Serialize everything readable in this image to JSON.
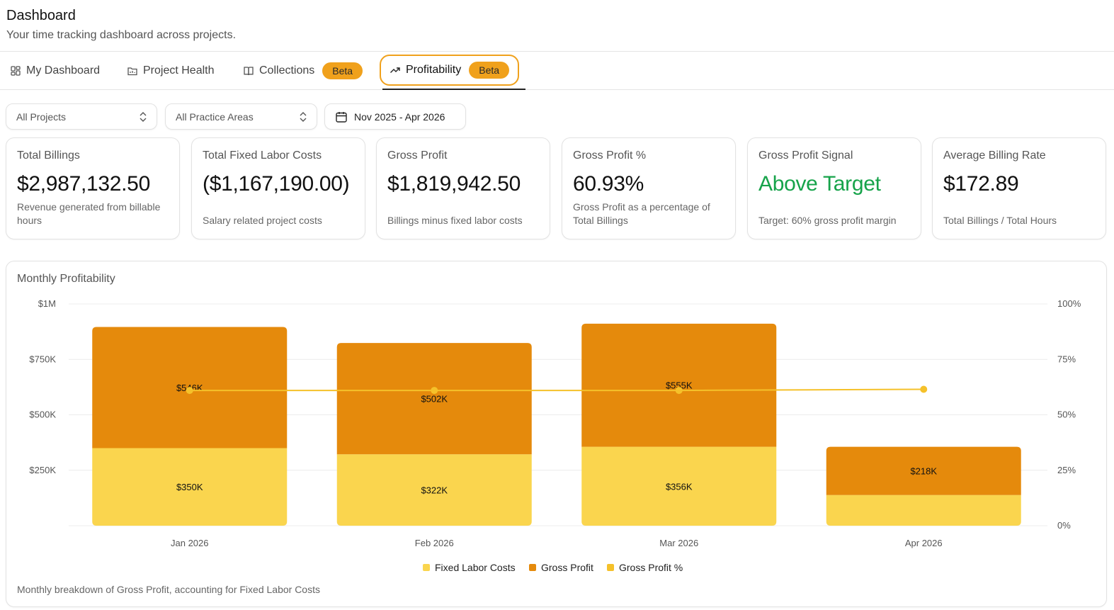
{
  "header": {
    "title": "Dashboard",
    "subtitle": "Your time tracking dashboard across projects."
  },
  "tabs": [
    {
      "label": "My Dashboard",
      "icon": "grid-icon"
    },
    {
      "label": "Project Health",
      "icon": "folder-chart-icon"
    },
    {
      "label": "Collections",
      "icon": "book-icon",
      "badge": "Beta"
    },
    {
      "label": "Profitability",
      "icon": "trending-up-icon",
      "badge": "Beta",
      "active": true
    }
  ],
  "filters": {
    "projects": "All Projects",
    "practice_areas": "All Practice Areas",
    "date_range": "Nov 2025 - Apr 2026"
  },
  "cards": [
    {
      "title": "Total Billings",
      "value": "$2,987,132.50",
      "desc": "Revenue generated from billable hours"
    },
    {
      "title": "Total Fixed Labor Costs",
      "value": "($1,167,190.00)",
      "desc": "Salary related project costs"
    },
    {
      "title": "Gross Profit",
      "value": "$1,819,942.50",
      "desc": "Billings minus fixed labor costs"
    },
    {
      "title": "Gross Profit %",
      "value": "60.93%",
      "desc": "Gross Profit as a percentage of Total Billings"
    },
    {
      "title": "Gross Profit Signal",
      "value": "Above Target",
      "desc": "Target: 60% gross profit margin",
      "value_color": "#16a34a"
    },
    {
      "title": "Average Billing Rate",
      "value": "$172.89",
      "desc": "Total Billings / Total Hours"
    }
  ],
  "chart": {
    "title": "Monthly Profitability",
    "footer": "Monthly breakdown of Gross Profit, accounting for Fixed Labor Costs"
  },
  "chart_data": {
    "type": "bar",
    "stacked": true,
    "categories": [
      "Jan 2026",
      "Feb 2026",
      "Mar 2026",
      "Apr 2026"
    ],
    "series": [
      {
        "name": "Fixed Labor Costs",
        "type": "bar",
        "color": "#fad54e",
        "values": [
          350000,
          322000,
          356000,
          138000
        ],
        "labels": [
          "$350K",
          "$322K",
          "$356K",
          ""
        ]
      },
      {
        "name": "Gross Profit",
        "type": "bar",
        "color": "#e58a0c",
        "values": [
          546000,
          502000,
          555000,
          218000
        ],
        "labels": [
          "$546K",
          "$502K",
          "$555K",
          "$218K"
        ]
      },
      {
        "name": "Gross Profit %",
        "type": "line",
        "axis": "right",
        "color": "#f5c12a",
        "values": [
          61,
          61,
          61,
          61.5
        ]
      }
    ],
    "y_left": {
      "ticks": [
        "$1M",
        "$750K",
        "$500K",
        "$250K"
      ],
      "tick_values": [
        1000000,
        750000,
        500000,
        250000
      ],
      "range": [
        0,
        1000000
      ]
    },
    "y_right": {
      "ticks": [
        "100%",
        "75%",
        "50%",
        "25%",
        "0%"
      ],
      "tick_values": [
        100,
        75,
        50,
        25,
        0
      ],
      "range": [
        0,
        100
      ]
    },
    "grid": true,
    "legend_position": "bottom"
  }
}
